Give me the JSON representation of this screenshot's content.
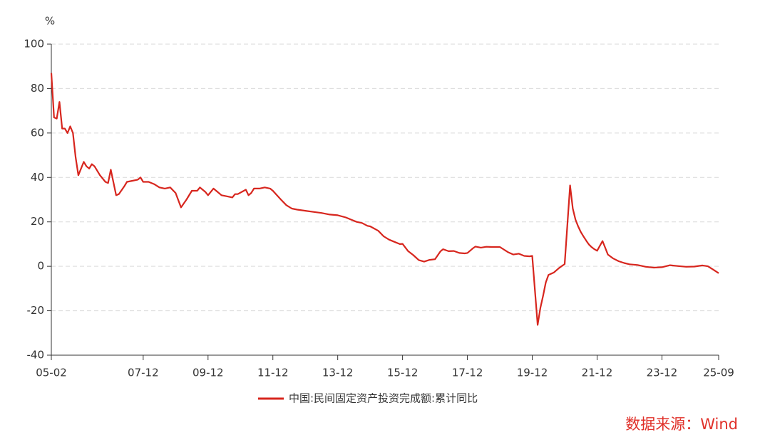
{
  "chart_data": {
    "type": "line",
    "y_unit": "%",
    "source": "数据来源：Wind",
    "x": [
      "05-02",
      "05-03",
      "05-04",
      "05-05",
      "05-06",
      "05-07",
      "05-08",
      "05-09",
      "05-10",
      "05-11",
      "05-12",
      "06-02",
      "06-03",
      "06-04",
      "06-05",
      "06-06",
      "06-08",
      "06-10",
      "06-11",
      "06-12",
      "07-02",
      "07-03",
      "07-05",
      "07-06",
      "07-08",
      "07-10",
      "07-11",
      "07-12",
      "08-02",
      "08-04",
      "08-06",
      "08-08",
      "08-10",
      "08-12",
      "09-02",
      "09-04",
      "09-06",
      "09-08",
      "09-09",
      "09-10",
      "09-11",
      "09-12",
      "10-02",
      "10-03",
      "10-05",
      "10-07",
      "10-09",
      "10-10",
      "10-11",
      "11-02",
      "11-03",
      "11-04",
      "11-05",
      "11-07",
      "11-09",
      "11-11",
      "11-12",
      "12-03",
      "12-05",
      "12-07",
      "12-09",
      "12-12",
      "13-03",
      "13-06",
      "13-09",
      "13-12",
      "14-03",
      "14-05",
      "14-07",
      "14-09",
      "14-11",
      "14-12",
      "15-03",
      "15-05",
      "15-07",
      "15-09",
      "15-11",
      "15-12",
      "16-02",
      "16-04",
      "16-06",
      "16-08",
      "16-10",
      "16-12",
      "17-02",
      "17-03",
      "17-05",
      "17-07",
      "17-09",
      "17-11",
      "17-12",
      "18-02",
      "18-03",
      "18-05",
      "18-07",
      "18-09",
      "18-12",
      "19-03",
      "19-05",
      "19-07",
      "19-09",
      "19-11",
      "19-12",
      "20-02",
      "20-03",
      "20-04",
      "20-05",
      "20-06",
      "20-08",
      "20-10",
      "20-12",
      "21-02",
      "21-03",
      "21-04",
      "21-05",
      "21-06",
      "21-07",
      "21-08",
      "21-09",
      "21-10",
      "21-11",
      "21-12",
      "22-02",
      "22-03",
      "22-04",
      "22-06",
      "22-08",
      "22-10",
      "22-12",
      "23-03",
      "23-06",
      "23-09",
      "23-12",
      "24-03",
      "24-06",
      "24-09",
      "24-12",
      "25-03",
      "25-05",
      "25-07",
      "25-09"
    ],
    "series": [
      {
        "name": "中国:民间固定资产投资完成额:累计同比",
        "color": "#d7261e",
        "values": [
          87,
          67,
          66.5,
          74,
          62,
          62,
          60,
          63,
          60,
          49,
          41,
          47,
          45,
          44,
          46,
          45,
          41,
          38,
          37.5,
          43.5,
          32,
          32.5,
          36,
          38,
          38.5,
          39,
          40,
          38,
          38,
          37,
          35.5,
          35,
          35.5,
          33,
          26.5,
          30,
          34,
          34,
          35.5,
          34.5,
          33.5,
          32,
          35,
          34,
          32,
          31.5,
          31,
          32.5,
          32.5,
          34.5,
          32,
          33,
          35,
          35,
          35.5,
          35,
          34,
          30,
          27.5,
          26,
          25.5,
          25,
          24.5,
          24,
          23.3,
          23,
          22,
          21,
          20,
          19.5,
          18.2,
          18,
          16,
          13.5,
          12,
          11,
          10,
          10.1,
          6.9,
          5,
          2.8,
          2.1,
          2.9,
          3.2,
          6.7,
          7.7,
          6.8,
          6.9,
          6,
          5.8,
          6,
          8.1,
          8.9,
          8.4,
          8.8,
          8.7,
          8.7,
          6.4,
          5.3,
          5.7,
          4.7,
          4.5,
          4.7,
          -26.4,
          -18.8,
          -13.3,
          -7.3,
          -3.9,
          -2.8,
          -0.7,
          1,
          36.4,
          26,
          21,
          18,
          15.4,
          13.4,
          11.5,
          9.8,
          8.6,
          7.7,
          7,
          11.4,
          8.4,
          5.3,
          3.5,
          2.3,
          1.5,
          0.9,
          0.6,
          -0.2,
          -0.6,
          -0.4,
          0.5,
          0.1,
          -0.2,
          -0.1,
          0.4,
          0,
          -1.5,
          -3.1
        ]
      }
    ],
    "xticks": [
      "05-02",
      "07-12",
      "09-12",
      "11-12",
      "13-12",
      "15-12",
      "17-12",
      "19-12",
      "21-12",
      "23-12",
      "25-09"
    ],
    "ylim": [
      -40,
      100
    ],
    "yticks": [
      -40,
      -20,
      0,
      20,
      40,
      60,
      80,
      100
    ],
    "grid": true,
    "legend": "bottom"
  }
}
